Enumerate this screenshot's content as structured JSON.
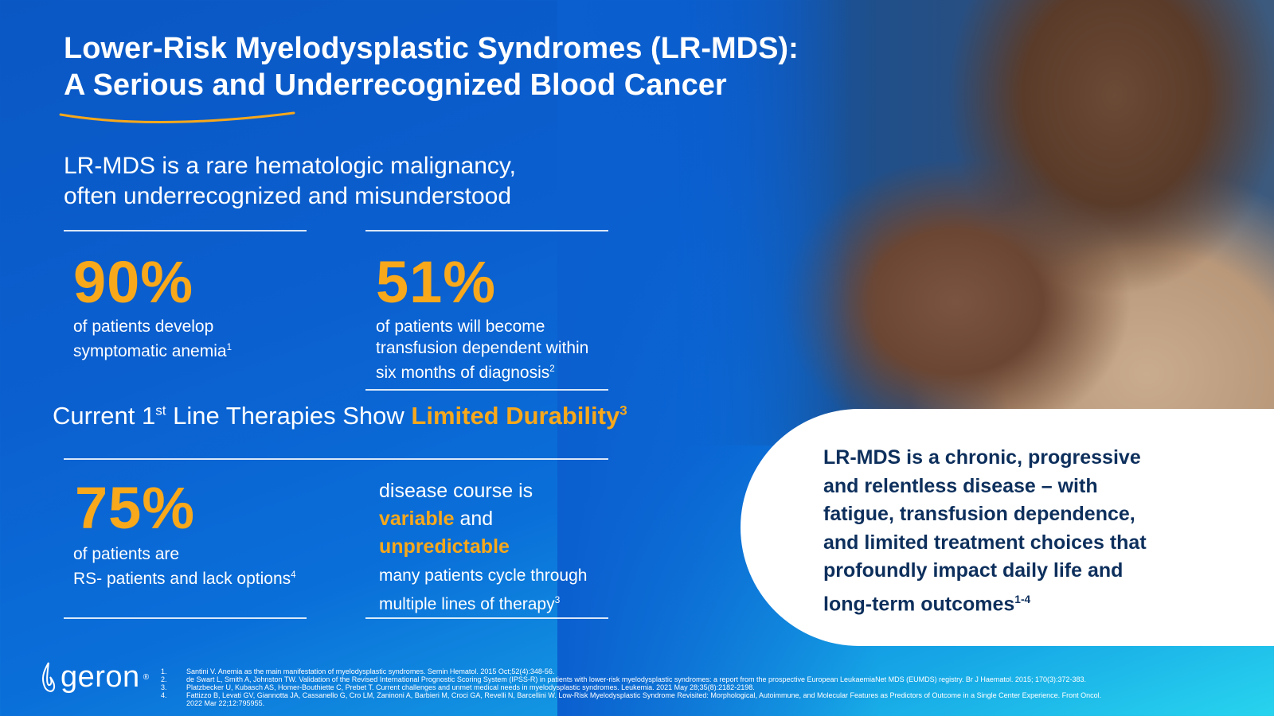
{
  "title": {
    "line1": "Lower-Risk Myelodysplastic Syndromes (LR-MDS):",
    "line2": "A Serious and Underrecognized Blood Cancer"
  },
  "intro": {
    "line1": "LR-MDS is a rare hematologic malignancy,",
    "line2": "often underrecognized and misunderstood"
  },
  "stats": {
    "anemia": {
      "value": "90%",
      "line1": "of patients develop",
      "line2": "symptomatic anemia",
      "ref": "1"
    },
    "transfusion": {
      "value": "51%",
      "line1": "of patients will become",
      "line2": "transfusion dependent within",
      "line3": "six months of diagnosis",
      "ref": "2"
    },
    "rs": {
      "value": "75%",
      "line1": "of patients are",
      "line2": "RS- patients and lack options",
      "ref": "4"
    }
  },
  "subhead": {
    "prefix": "Current 1",
    "sup": "st",
    "middle": " Line Therapies Show ",
    "highlight": "Limited Durability",
    "ref": "3"
  },
  "course": {
    "line1": "disease course is",
    "variable": "variable",
    "and": " and",
    "unpredictable": "unpredictable",
    "line4": "many patients cycle through",
    "line5": "multiple lines of therapy",
    "ref": "3"
  },
  "callout": {
    "lines": [
      "LR-MDS is a chronic, progressive",
      "and relentless disease – with",
      "fatigue, transfusion dependence,",
      "and limited treatment choices that",
      "profoundly impact daily life and",
      "long-term outcomes"
    ],
    "ref": "1-4"
  },
  "logo": {
    "text": "geron",
    "mark": "®"
  },
  "references": [
    {
      "n": "1.",
      "text": "Santini V. Anemia as the main manifestation of myelodysplastic syndromes. Semin Hematol. 2015 Oct;52(4):348-56."
    },
    {
      "n": "2.",
      "text": "de Swart L, Smith A, Johnston TW. Validation of the Revised International Prognostic Scoring System (IPSS-R) in patients with lower-risk myelodysplastic syndromes: a report from the prospective European LeukaemiaNet MDS (EUMDS) registry. Br J Haematol. 2015; 170(3):372-383."
    },
    {
      "n": "3.",
      "text": "Platzbecker U, Kubasch AS, Homer-Bouthiette C, Prebet T. Current challenges and unmet medical needs in myelodysplastic syndromes. Leukemia. 2021 May 28;35(8):2182-2198."
    },
    {
      "n": "4.",
      "text": "Fattizzo B, Levati GV, Giannotta JA, Cassanello G, Cro LM, Zaninoni A, Barbieri M, Croci GA, Revelli N, Barcellini W. Low-Risk Myelodysplastic Syndrome Revisited: Morphological, Autoimmune, and Molecular Features as Predictors of Outcome in a Single Center Experience. Front Oncol."
    },
    {
      "n": "",
      "text": "2022 Mar 22;12:795955."
    }
  ],
  "colors": {
    "accent": "#f7a81b",
    "navy": "#0d2f5c",
    "blue": "#0b5fcf"
  }
}
